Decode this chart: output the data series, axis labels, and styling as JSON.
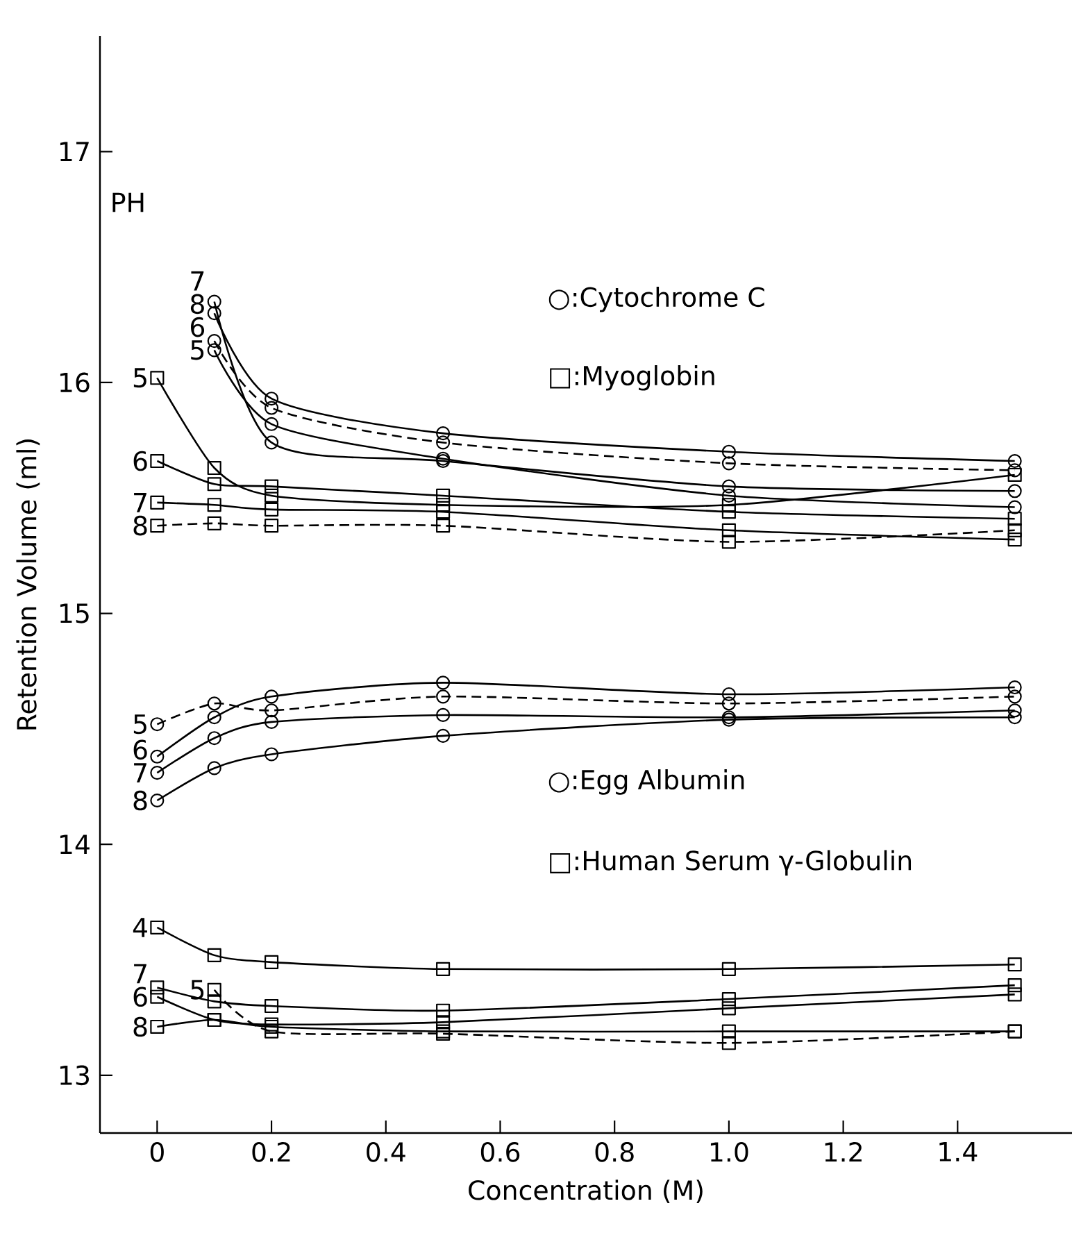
{
  "chart_data": {
    "type": "line",
    "xlabel": "Concentration (M)",
    "ylabel": "Retention Volume (ml)",
    "x": [
      0,
      0.1,
      0.2,
      0.5,
      1.0,
      1.5
    ],
    "xlim": [
      -0.1,
      1.6
    ],
    "ylim": [
      12.75,
      17.5
    ],
    "xticks": [
      0,
      0.2,
      0.4,
      0.6,
      0.8,
      {
        "value": 1.0,
        "label": "1.0"
      },
      1.2,
      1.4
    ],
    "yticks": [
      13,
      14,
      15,
      16,
      17
    ],
    "series": [
      {
        "name": "8",
        "color": "#000000",
        "marker": "circle",
        "line_style": "solid",
        "x": [
          0.1,
          0.2,
          0.5,
          1.0,
          1.5
        ],
        "values": [
          16.3,
          15.93,
          15.78,
          15.7,
          15.66
        ]
      },
      {
        "name": "7",
        "color": "#000000",
        "marker": "circle",
        "line_style": "solid",
        "x": [
          0.1,
          0.2,
          0.5,
          1.0,
          1.5
        ],
        "values": [
          16.35,
          15.74,
          15.66,
          15.55,
          15.53
        ]
      },
      {
        "name": "6",
        "color": "#000000",
        "marker": "circle",
        "line_style": "dashed",
        "x": [
          0.1,
          0.2,
          0.5,
          1.0,
          1.5
        ],
        "values": [
          16.18,
          15.89,
          15.74,
          15.65,
          15.62
        ]
      },
      {
        "name": "5",
        "color": "#000000",
        "marker": "circle",
        "line_style": "solid",
        "x": [
          0.1,
          0.2,
          0.5,
          1.0,
          1.5
        ],
        "values": [
          16.14,
          15.82,
          15.67,
          15.51,
          15.46
        ]
      },
      {
        "name": "5",
        "color": "#000000",
        "marker": "square",
        "line_style": "solid",
        "values": [
          16.02,
          15.63,
          15.51,
          15.47,
          15.47,
          15.6
        ]
      },
      {
        "name": "6",
        "color": "#000000",
        "marker": "square",
        "line_style": "solid",
        "values": [
          15.66,
          15.56,
          15.55,
          15.51,
          15.44,
          15.41
        ]
      },
      {
        "name": "7",
        "color": "#000000",
        "marker": "square",
        "line_style": "solid",
        "values": [
          15.48,
          15.47,
          15.45,
          15.44,
          15.36,
          15.32
        ]
      },
      {
        "name": "8",
        "color": "#000000",
        "marker": "square",
        "line_style": "dashed",
        "values": [
          15.38,
          15.39,
          15.38,
          15.38,
          15.31,
          15.36
        ]
      },
      {
        "name": "5",
        "color": "#000000",
        "marker": "circle",
        "line_style": "dashed",
        "values": [
          14.52,
          14.61,
          14.58,
          14.64,
          14.61,
          14.64
        ]
      },
      {
        "name": "6",
        "color": "#000000",
        "marker": "circle",
        "line_style": "solid",
        "values": [
          14.38,
          14.55,
          14.64,
          14.7,
          14.65,
          14.68
        ]
      },
      {
        "name": "7",
        "color": "#000000",
        "marker": "circle",
        "line_style": "solid",
        "values": [
          14.31,
          14.46,
          14.53,
          14.56,
          14.55,
          14.58
        ]
      },
      {
        "name": "8",
        "color": "#000000",
        "marker": "circle",
        "line_style": "solid",
        "values": [
          14.19,
          14.33,
          14.39,
          14.47,
          14.54,
          14.55
        ]
      },
      {
        "name": "4",
        "color": "#000000",
        "marker": "square",
        "line_style": "solid",
        "values": [
          13.64,
          13.52,
          13.49,
          13.46,
          13.46,
          13.48
        ]
      },
      {
        "name": "7",
        "color": "#000000",
        "marker": "square",
        "line_style": "solid",
        "values": [
          13.38,
          13.32,
          13.3,
          13.28,
          13.33,
          13.39
        ]
      },
      {
        "name": "6",
        "color": "#000000",
        "marker": "square",
        "line_style": "solid",
        "values": [
          13.34,
          13.24,
          13.22,
          13.23,
          13.29,
          13.35
        ]
      },
      {
        "name": "5",
        "color": "#000000",
        "marker": "square",
        "line_style": "dashed",
        "x": [
          0.1,
          0.2,
          0.5,
          1.0,
          1.5
        ],
        "values": [
          13.37,
          13.19,
          13.18,
          13.14,
          13.19
        ]
      },
      {
        "name": "8",
        "color": "#000000",
        "marker": "square",
        "line_style": "solid",
        "values": [
          13.21,
          13.24,
          13.21,
          13.19,
          13.19,
          13.19
        ]
      }
    ],
    "annotations": [
      "PH",
      "○:Cytochrome C",
      "□:Myoglobin",
      "○:Egg Albumin",
      "□:Human Serum γ-Globulin"
    ]
  }
}
